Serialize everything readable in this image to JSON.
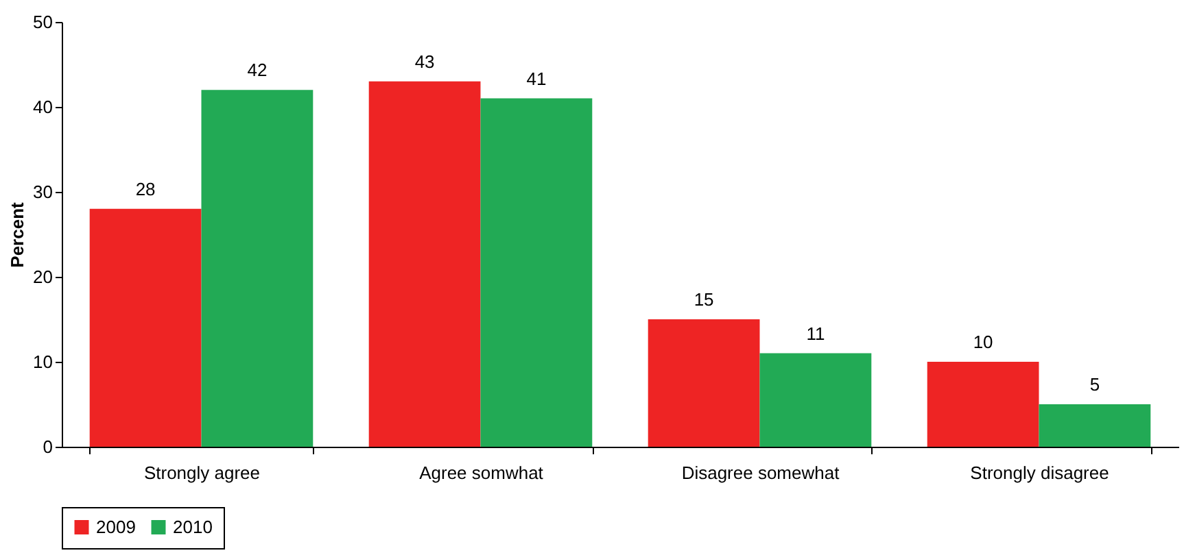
{
  "chart_data": {
    "type": "bar",
    "ylabel": "Percent",
    "categories": [
      "Strongly agree",
      "Agree somwhat",
      "Disagree somewhat",
      "Strongly disagree"
    ],
    "series": [
      {
        "name": "2009",
        "color": "#ee2424",
        "values": [
          28,
          43,
          15,
          10
        ]
      },
      {
        "name": "2010",
        "color": "#22aa55",
        "values": [
          42,
          41,
          11,
          5
        ]
      }
    ],
    "ylim": [
      0,
      50
    ],
    "yticks": [
      0,
      10,
      20,
      30,
      40,
      50
    ],
    "grid": false,
    "legend": "bottom",
    "data_labels": true
  }
}
